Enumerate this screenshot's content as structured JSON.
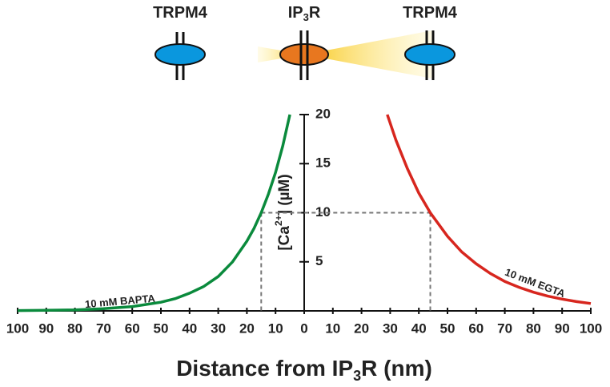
{
  "chart_data": {
    "type": "line",
    "channel_labels": [
      {
        "text": "TRPM4"
      },
      {
        "text": "IP",
        "sub": "3",
        "tail": "R"
      },
      {
        "text": "TRPM4"
      }
    ],
    "x_label": {
      "text": "Distance from IP",
      "sub": "3",
      "tail": "R (nm)"
    },
    "y_label": {
      "text": "[Ca",
      "sup": "2+",
      "tail": "] (µM)"
    },
    "xlim": [
      -100,
      100
    ],
    "ylim": [
      0,
      20
    ],
    "xticks": [
      {
        "value": -100,
        "label": "100"
      },
      {
        "value": -90,
        "label": "90"
      },
      {
        "value": -80,
        "label": "80"
      },
      {
        "value": -70,
        "label": "70"
      },
      {
        "value": -60,
        "label": "60"
      },
      {
        "value": -50,
        "label": "50"
      },
      {
        "value": -40,
        "label": "40"
      },
      {
        "value": -30,
        "label": "30"
      },
      {
        "value": -20,
        "label": "20"
      },
      {
        "value": -10,
        "label": "10"
      },
      0,
      10,
      20,
      30,
      40,
      50,
      60,
      70,
      80,
      90,
      100
    ],
    "yticks": [
      5,
      10,
      15,
      20
    ],
    "reference": {
      "y": 10,
      "x": [
        -15,
        44
      ]
    },
    "series": [
      {
        "name": "10 mM BAPTA",
        "color": "#0a8a3c",
        "x": [
          -100,
          -90,
          -80,
          -70,
          -60,
          -50,
          -45,
          -40,
          -35,
          -30,
          -25,
          -20,
          -17.5,
          -15,
          -12.5,
          -10,
          -7.5,
          -5
        ],
        "values": [
          0.03,
          0.06,
          0.11,
          0.22,
          0.44,
          0.88,
          1.25,
          1.8,
          2.5,
          3.5,
          5,
          7.1,
          8.4,
          10,
          11.9,
          14.1,
          16.8,
          20
        ]
      },
      {
        "name": "10 mM EGTA",
        "color": "#d7261e",
        "x": [
          29,
          32,
          36,
          40,
          44,
          50,
          55,
          60,
          65,
          70,
          75,
          80,
          85,
          90,
          95,
          100
        ],
        "values": [
          20,
          17.4,
          14.5,
          12.0,
          10,
          7.6,
          6.0,
          4.8,
          3.8,
          3.0,
          2.4,
          1.9,
          1.5,
          1.2,
          0.95,
          0.75
        ]
      }
    ]
  }
}
